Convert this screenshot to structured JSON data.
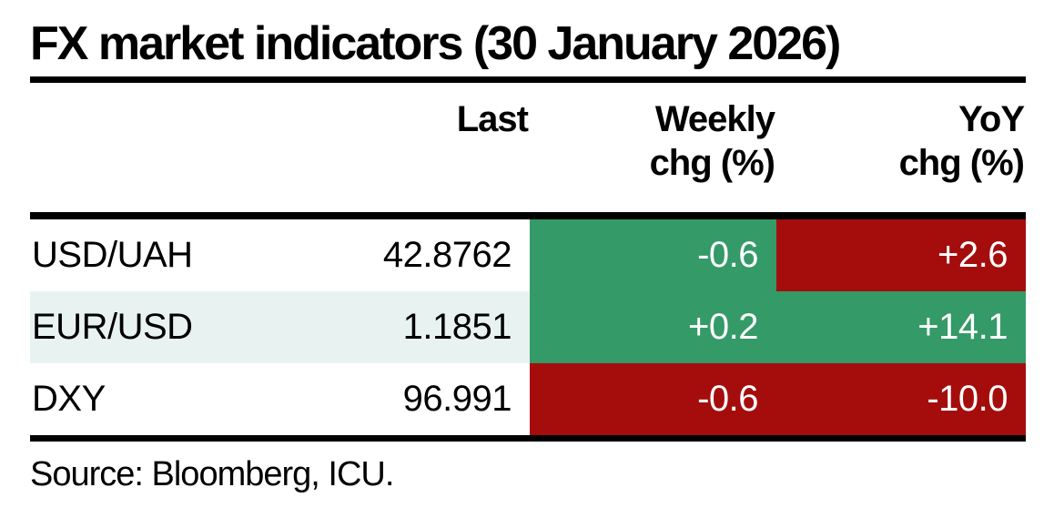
{
  "title": "FX market indicators (30 January 2026)",
  "source_note": "Source: Bloomberg, ICU.",
  "colors": {
    "cell_green": "#349a67",
    "cell_red": "#a50d0d",
    "row_stripe": "#e8f3f1",
    "rule_black": "#000000",
    "chg_text_white": "#ffffff"
  },
  "table": {
    "headers": {
      "instrument": "",
      "last": "Last",
      "weekly_line1": "Weekly",
      "weekly_line2": "chg (%)",
      "yoy_line1": "YoY",
      "yoy_line2": "chg (%)"
    },
    "rows": [
      {
        "instrument": "USD/UAH",
        "last": "42.8762",
        "weekly": "-0.6",
        "weekly_color": "green",
        "yoy": "+2.6",
        "yoy_color": "red"
      },
      {
        "instrument": "EUR/USD",
        "last": "1.1851",
        "weekly": "+0.2",
        "weekly_color": "green",
        "yoy": "+14.1",
        "yoy_color": "green"
      },
      {
        "instrument": "DXY",
        "last": "96.991",
        "weekly": "-0.6",
        "weekly_color": "red",
        "yoy": "-10.0",
        "yoy_color": "red"
      }
    ]
  },
  "chart_data": {
    "type": "table",
    "title": "FX market indicators (30 January 2026)",
    "columns": [
      "",
      "Last",
      "Weekly chg (%)",
      "YoY chg (%)"
    ],
    "rows": [
      {
        "instrument": "USD/UAH",
        "last": 42.8762,
        "weekly_chg_pct": -0.6,
        "weekly_cell_color": "green",
        "yoy_chg_pct": 2.6,
        "yoy_cell_color": "red"
      },
      {
        "instrument": "EUR/USD",
        "last": 1.1851,
        "weekly_chg_pct": 0.2,
        "weekly_cell_color": "green",
        "yoy_chg_pct": 14.1,
        "yoy_cell_color": "green"
      },
      {
        "instrument": "DXY",
        "last": 96.991,
        "weekly_chg_pct": -0.6,
        "weekly_cell_color": "red",
        "yoy_chg_pct": -10.0,
        "yoy_cell_color": "red"
      }
    ],
    "source": "Source: Bloomberg, ICU."
  }
}
